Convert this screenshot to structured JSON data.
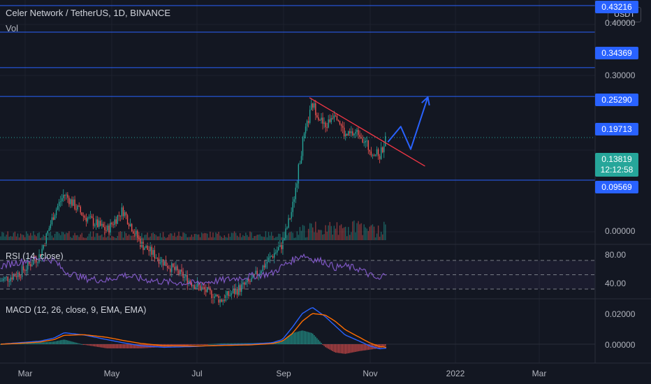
{
  "header": {
    "symbol": "Celer Network / TetherUS, 1D, BINANCE",
    "volume_label": "Vol",
    "currency_button": "USDT"
  },
  "colors": {
    "background": "#131722",
    "grid": "#1e222d",
    "up": "#26a69a",
    "down": "#ef5350",
    "level_line": "#2962ff",
    "trendline": "#f23645",
    "arrow": "#2962ff",
    "rsi": "#7e57c2",
    "macd": "#2962ff",
    "signal": "#ff6d00",
    "price_badge": "#26a69a"
  },
  "chart_data": [
    {
      "type": "candlestick",
      "title": "Celer Network / TetherUS, 1D, BINANCE",
      "x_ticks": [
        "Mar",
        "May",
        "Jul",
        "Sep",
        "Nov",
        "2022",
        "Mar"
      ],
      "y_ticks": [
        "0.40000",
        "0.30000",
        "0.00000"
      ],
      "scale": "log",
      "last_price": "0.13819",
      "countdown": "12:12:58",
      "horizontal_levels": [
        {
          "label": "0.43216",
          "value": 0.43216
        },
        {
          "label": "0.34369",
          "value": 0.34369
        },
        {
          "label": "0.25290",
          "value": 0.2529
        },
        {
          "label": "0.19713",
          "value": 0.19713
        },
        {
          "label": "0.09569",
          "value": 0.09569
        }
      ],
      "close_series": [
        {
          "date": "2021-02-15",
          "close": 0.04
        },
        {
          "date": "2021-03-01",
          "close": 0.043
        },
        {
          "date": "2021-03-15",
          "close": 0.05
        },
        {
          "date": "2021-03-25",
          "close": 0.072
        },
        {
          "date": "2021-04-01",
          "close": 0.085
        },
        {
          "date": "2021-04-15",
          "close": 0.07
        },
        {
          "date": "2021-05-01",
          "close": 0.062
        },
        {
          "date": "2021-05-12",
          "close": 0.074
        },
        {
          "date": "2021-05-25",
          "close": 0.055
        },
        {
          "date": "2021-06-10",
          "close": 0.047
        },
        {
          "date": "2021-07-01",
          "close": 0.039
        },
        {
          "date": "2021-07-20",
          "close": 0.034
        },
        {
          "date": "2021-08-10",
          "close": 0.04
        },
        {
          "date": "2021-08-25",
          "close": 0.05
        },
        {
          "date": "2021-09-01",
          "close": 0.055
        },
        {
          "date": "2021-09-08",
          "close": 0.075
        },
        {
          "date": "2021-09-15",
          "close": 0.13
        },
        {
          "date": "2021-09-22",
          "close": 0.185
        },
        {
          "date": "2021-10-01",
          "close": 0.15
        },
        {
          "date": "2021-10-08",
          "close": 0.175
        },
        {
          "date": "2021-10-15",
          "close": 0.14
        },
        {
          "date": "2021-10-25",
          "close": 0.145
        },
        {
          "date": "2021-11-01",
          "close": 0.125
        },
        {
          "date": "2021-11-08",
          "close": 0.118
        },
        {
          "date": "2021-11-13",
          "close": 0.138
        }
      ],
      "trendline": {
        "from": {
          "date": "2021-09-20",
          "value": 0.195
        },
        "to": {
          "date": "2021-12-10",
          "value": 0.108
        }
      },
      "projection_arrow": [
        {
          "date": "2021-11-14",
          "value": 0.133
        },
        {
          "date": "2021-11-23",
          "value": 0.152
        },
        {
          "date": "2021-11-30",
          "value": 0.125
        },
        {
          "date": "2021-12-12",
          "value": 0.196
        }
      ]
    },
    {
      "type": "line",
      "name": "RSI (14, close)",
      "y_ticks": [
        "80.00",
        "40.00"
      ],
      "bands": [
        70,
        50,
        30
      ],
      "series": [
        {
          "name": "RSI (14, close)",
          "values": [
            62,
            68,
            74,
            70,
            55,
            45,
            42,
            50,
            44,
            40,
            38,
            42,
            48,
            52,
            62,
            70,
            78,
            72,
            68,
            60,
            62,
            58,
            50,
            42,
            55
          ]
        }
      ]
    },
    {
      "type": "line",
      "name": "MACD (12, 26, close, 9, EMA, EMA)",
      "y_ticks": [
        "0.02000",
        "0.00000"
      ],
      "series": [
        {
          "name": "MACD",
          "values": [
            0.0,
            0.001,
            0.002,
            0.004,
            0.0075,
            0.006,
            0.003,
            0.001,
            -0.001,
            -0.002,
            -0.0015,
            -0.0005,
            0.0,
            0.001,
            0.003,
            0.011,
            0.02,
            0.024,
            0.018,
            0.012,
            0.006,
            0.002,
            -0.001,
            -0.003,
            -0.0025
          ]
        },
        {
          "name": "Signal",
          "values": [
            0.0,
            0.0006,
            0.0014,
            0.003,
            0.0058,
            0.0062,
            0.0045,
            0.0025,
            0.0005,
            -0.001,
            -0.0012,
            -0.0008,
            -0.0004,
            0.0004,
            0.002,
            0.007,
            0.015,
            0.02,
            0.019,
            0.015,
            0.0095,
            0.0045,
            0.001,
            -0.0015,
            -0.002
          ]
        }
      ]
    }
  ]
}
